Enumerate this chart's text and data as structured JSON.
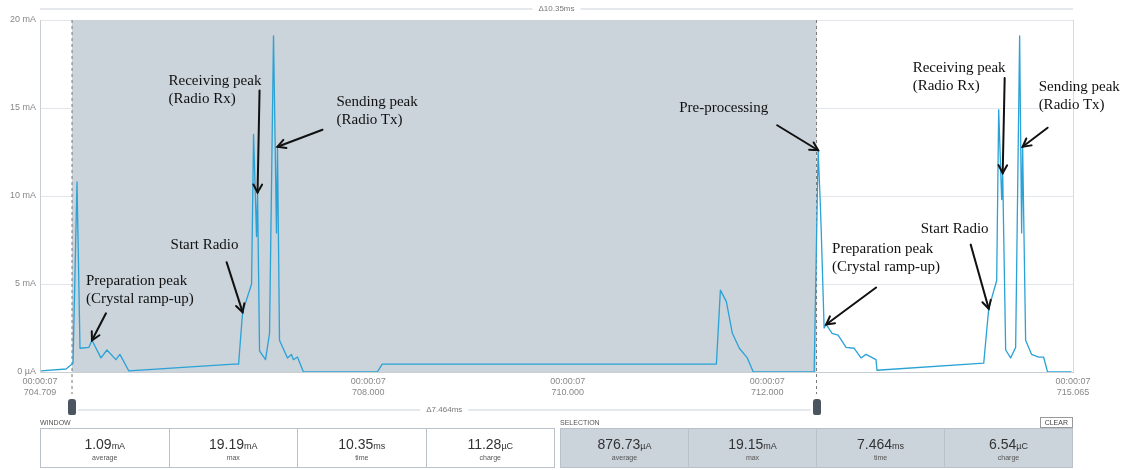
{
  "chart_data": [
    {
      "type": "line",
      "color": "#2aa2d6",
      "marker": "none",
      "line_style": "solid",
      "grid": true,
      "legend": false,
      "x": [
        704.72,
        704.97,
        705.04,
        705.08,
        705.11,
        705.2,
        705.23,
        705.32,
        705.38,
        705.47,
        705.51,
        705.6,
        706.65,
        706.7,
        706.74,
        706.83,
        706.85,
        706.88,
        706.89,
        706.91,
        706.97,
        707.01,
        707.05,
        707.08,
        707.09,
        707.11,
        707.19,
        707.23,
        707.25,
        707.29,
        707.35,
        708.09,
        708.14,
        711.49,
        711.53,
        711.59,
        711.65,
        711.72,
        711.8,
        711.86,
        712.47,
        712.51,
        712.53,
        712.54,
        712.57,
        712.59,
        712.65,
        712.71,
        712.79,
        712.87,
        712.94,
        712.99,
        713.09,
        713.1,
        714.17,
        714.22,
        714.3,
        714.32,
        714.35,
        714.36,
        714.39,
        714.44,
        714.49,
        714.53,
        714.55,
        714.56,
        714.59,
        714.65,
        714.72,
        714.77,
        714.81,
        715.05
      ],
      "values": [
        0.06,
        0.17,
        0.5,
        10.8,
        1.35,
        1.4,
        1.8,
        0.8,
        1.25,
        0.7,
        1.0,
        0.06,
        0.45,
        0.45,
        3.4,
        5.0,
        13.5,
        7.7,
        10.2,
        1.2,
        0.7,
        2.2,
        19.1,
        7.9,
        12.8,
        1.8,
        0.8,
        1.0,
        0.7,
        0.85,
        0,
        0,
        0.45,
        0.45,
        4.65,
        4.0,
        2.2,
        1.35,
        0.8,
        0,
        0,
        12.6,
        9.8,
        8.2,
        2.5,
        2.7,
        2.2,
        2.1,
        1.4,
        1.35,
        0.8,
        1.0,
        0.7,
        0.1,
        0.5,
        3.6,
        5.2,
        14.9,
        9.8,
        11.3,
        1.25,
        0.8,
        1.4,
        19.1,
        7.9,
        12.8,
        1.8,
        1.0,
        0.85,
        0.85,
        0,
        0
      ],
      "xlim": [
        704.709,
        715.065
      ],
      "xlabel": "00:00:07",
      "xticks": [
        704.709,
        {
          "value": 708,
          "label": "708.000"
        },
        {
          "value": 710,
          "label": "710.000"
        },
        {
          "value": 712,
          "label": "712.000"
        },
        715.065
      ],
      "ylim": [
        0,
        20
      ],
      "yticks": [
        {
          "value": 0,
          "label": "0 µA"
        },
        {
          "value": 5,
          "label": "5 mA"
        },
        {
          "value": 10,
          "label": "10 mA"
        },
        {
          "value": 15,
          "label": "15 mA"
        },
        {
          "value": 20,
          "label": "20 mA"
        }
      ],
      "bands": [
        {
          "axis": "x",
          "from": 705.03,
          "to": 712.494,
          "color": "#cbd3db"
        }
      ],
      "ref_lines": [
        {
          "axis": "x",
          "value": 705.03,
          "color": "#777777",
          "line_style": "dashed"
        },
        {
          "axis": "x",
          "value": 712.494,
          "color": "#777777",
          "line_style": "dashed"
        }
      ],
      "annotations": [
        "Δ10.35ms",
        "Δ7.464ms",
        {
          "text": "Preparation peak\n(Crystal ramp-up)",
          "x": 705.23,
          "y": 1.8
        },
        {
          "text": "Start Radio",
          "x": 706.74,
          "y": 3.4
        },
        {
          "text": "Receiving peak\n(Radio Rx)",
          "x": 706.89,
          "y": 10.2
        },
        {
          "text": "Sending peak\n(Radio Tx)",
          "x": 707.09,
          "y": 12.8
        },
        {
          "text": "Pre-processing",
          "x": 712.51,
          "y": 12.6
        },
        {
          "text": "Preparation peak\n(Crystal ramp-up)",
          "x": 712.59,
          "y": 2.7
        },
        {
          "text": "Start Radio",
          "x": 714.22,
          "y": 3.6
        },
        {
          "text": "Receiving peak\n(Radio Rx)",
          "x": 714.36,
          "y": 11.3
        },
        {
          "text": "Sending peak\n(Radio Tx)",
          "x": 714.56,
          "y": 12.8
        }
      ]
    },
    {
      "type": "other",
      "title": "WINDOW",
      "annotations": [
        "1.09mA",
        "average",
        "19.19mA",
        "max",
        "10.35ms",
        "time",
        "11.28µC",
        "charge"
      ]
    },
    {
      "type": "other",
      "title": "SELECTION",
      "subtitle": "CLEAR",
      "annotations": [
        "876.73µA",
        "average",
        "19.15mA",
        "max",
        "7.464ms",
        "time",
        "6.54µC",
        "charge"
      ]
    }
  ]
}
